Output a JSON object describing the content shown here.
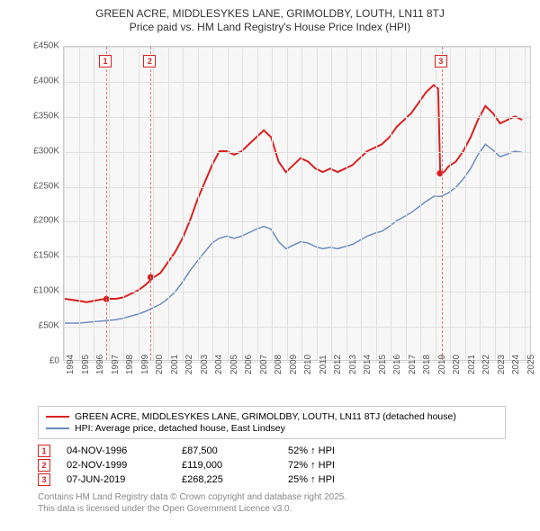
{
  "title_line1": "GREEN ACRE, MIDDLESYKES LANE, GRIMOLDBY, LOUTH, LN11 8TJ",
  "title_line2": "Price paid vs. HM Land Registry's House Price Index (HPI)",
  "chart": {
    "type": "line",
    "background_color": "#f7f7f7",
    "grid_color": "#e0e0e0",
    "border_color": "#cccccc",
    "xlim": [
      1994,
      2025.5
    ],
    "ylim": [
      0,
      450000
    ],
    "ytick_step": 50000,
    "yticks": [
      "£0",
      "£50K",
      "£100K",
      "£150K",
      "£200K",
      "£250K",
      "£300K",
      "£350K",
      "£400K",
      "£450K"
    ],
    "xticks": [
      "1994",
      "1995",
      "1996",
      "1997",
      "1998",
      "1999",
      "2000",
      "2001",
      "2002",
      "2003",
      "2004",
      "2005",
      "2006",
      "2007",
      "2008",
      "2009",
      "2010",
      "2011",
      "2012",
      "2013",
      "2014",
      "2015",
      "2016",
      "2017",
      "2018",
      "2019",
      "2020",
      "2021",
      "2022",
      "2023",
      "2024",
      "2025"
    ],
    "series": [
      {
        "name": "red",
        "color": "#d82020",
        "width": 2,
        "points": [
          [
            1994,
            88000
          ],
          [
            1995,
            85000
          ],
          [
            1995.5,
            83000
          ],
          [
            1996,
            85000
          ],
          [
            1996.5,
            87000
          ],
          [
            1997,
            88000
          ],
          [
            1997.5,
            88000
          ],
          [
            1998,
            90000
          ],
          [
            1998.5,
            95000
          ],
          [
            1999,
            100000
          ],
          [
            1999.5,
            108000
          ],
          [
            2000,
            118000
          ],
          [
            2000.5,
            125000
          ],
          [
            2001,
            140000
          ],
          [
            2001.5,
            155000
          ],
          [
            2002,
            175000
          ],
          [
            2002.5,
            200000
          ],
          [
            2003,
            230000
          ],
          [
            2003.5,
            255000
          ],
          [
            2004,
            280000
          ],
          [
            2004.5,
            300000
          ],
          [
            2005,
            300000
          ],
          [
            2005.5,
            295000
          ],
          [
            2006,
            300000
          ],
          [
            2006.5,
            310000
          ],
          [
            2007,
            320000
          ],
          [
            2007.5,
            330000
          ],
          [
            2008,
            320000
          ],
          [
            2008.5,
            285000
          ],
          [
            2009,
            270000
          ],
          [
            2009.5,
            280000
          ],
          [
            2010,
            290000
          ],
          [
            2010.5,
            285000
          ],
          [
            2011,
            275000
          ],
          [
            2011.5,
            270000
          ],
          [
            2012,
            275000
          ],
          [
            2012.5,
            270000
          ],
          [
            2013,
            275000
          ],
          [
            2013.5,
            280000
          ],
          [
            2014,
            290000
          ],
          [
            2014.5,
            300000
          ],
          [
            2015,
            305000
          ],
          [
            2015.5,
            310000
          ],
          [
            2016,
            320000
          ],
          [
            2016.5,
            335000
          ],
          [
            2017,
            345000
          ],
          [
            2017.5,
            355000
          ],
          [
            2018,
            370000
          ],
          [
            2018.5,
            385000
          ],
          [
            2019,
            395000
          ],
          [
            2019.3,
            390000
          ],
          [
            2019.45,
            268000
          ],
          [
            2019.7,
            270000
          ],
          [
            2020,
            278000
          ],
          [
            2020.5,
            285000
          ],
          [
            2021,
            300000
          ],
          [
            2021.5,
            320000
          ],
          [
            2022,
            345000
          ],
          [
            2022.5,
            365000
          ],
          [
            2023,
            355000
          ],
          [
            2023.5,
            340000
          ],
          [
            2024,
            345000
          ],
          [
            2024.5,
            350000
          ],
          [
            2025,
            345000
          ]
        ]
      },
      {
        "name": "blue",
        "color": "#6b8cbf",
        "width": 1.5,
        "points": [
          [
            1994,
            53000
          ],
          [
            1995,
            53000
          ],
          [
            1996,
            55000
          ],
          [
            1997,
            57000
          ],
          [
            1997.5,
            58000
          ],
          [
            1998,
            60000
          ],
          [
            1998.5,
            63000
          ],
          [
            1999,
            66000
          ],
          [
            1999.5,
            70000
          ],
          [
            2000,
            75000
          ],
          [
            2000.5,
            80000
          ],
          [
            2001,
            88000
          ],
          [
            2001.5,
            98000
          ],
          [
            2002,
            112000
          ],
          [
            2002.5,
            128000
          ],
          [
            2003,
            142000
          ],
          [
            2003.5,
            155000
          ],
          [
            2004,
            168000
          ],
          [
            2004.5,
            175000
          ],
          [
            2005,
            178000
          ],
          [
            2005.5,
            175000
          ],
          [
            2006,
            178000
          ],
          [
            2006.5,
            183000
          ],
          [
            2007,
            188000
          ],
          [
            2007.5,
            192000
          ],
          [
            2008,
            188000
          ],
          [
            2008.5,
            170000
          ],
          [
            2009,
            160000
          ],
          [
            2009.5,
            165000
          ],
          [
            2010,
            170000
          ],
          [
            2010.5,
            168000
          ],
          [
            2011,
            163000
          ],
          [
            2011.5,
            160000
          ],
          [
            2012,
            162000
          ],
          [
            2012.5,
            160000
          ],
          [
            2013,
            163000
          ],
          [
            2013.5,
            166000
          ],
          [
            2014,
            172000
          ],
          [
            2014.5,
            178000
          ],
          [
            2015,
            182000
          ],
          [
            2015.5,
            185000
          ],
          [
            2016,
            192000
          ],
          [
            2016.5,
            200000
          ],
          [
            2017,
            206000
          ],
          [
            2017.5,
            212000
          ],
          [
            2018,
            220000
          ],
          [
            2018.5,
            228000
          ],
          [
            2019,
            235000
          ],
          [
            2019.5,
            235000
          ],
          [
            2020,
            240000
          ],
          [
            2020.5,
            248000
          ],
          [
            2021,
            260000
          ],
          [
            2021.5,
            275000
          ],
          [
            2022,
            295000
          ],
          [
            2022.5,
            310000
          ],
          [
            2023,
            302000
          ],
          [
            2023.5,
            292000
          ],
          [
            2024,
            296000
          ],
          [
            2024.5,
            300000
          ],
          [
            2025,
            298000
          ]
        ]
      }
    ],
    "sale_markers": [
      {
        "x": 1996.85,
        "y": 87500,
        "color": "#d82020"
      },
      {
        "x": 1999.84,
        "y": 119000,
        "color": "#d82020"
      },
      {
        "x": 2019.43,
        "y": 268225,
        "color": "#d82020"
      }
    ],
    "events": [
      {
        "num": "1",
        "x": 1996.85
      },
      {
        "num": "2",
        "x": 1999.84
      },
      {
        "num": "3",
        "x": 2019.43
      }
    ]
  },
  "legend": {
    "rows": [
      {
        "color": "#d82020",
        "label": "GREEN ACRE, MIDDLESYKES LANE, GRIMOLDBY, LOUTH, LN11 8TJ (detached house)"
      },
      {
        "color": "#6b8cbf",
        "label": "HPI: Average price, detached house, East Lindsey"
      }
    ]
  },
  "sales": [
    {
      "num": "1",
      "date": "04-NOV-1996",
      "price": "£87,500",
      "hpi": "52% ↑ HPI"
    },
    {
      "num": "2",
      "date": "02-NOV-1999",
      "price": "£119,000",
      "hpi": "72% ↑ HPI"
    },
    {
      "num": "3",
      "date": "07-JUN-2019",
      "price": "£268,225",
      "hpi": "25% ↑ HPI"
    }
  ],
  "footer_line1": "Contains HM Land Registry data © Crown copyright and database right 2025.",
  "footer_line2": "This data is licensed under the Open Government Licence v3.0."
}
